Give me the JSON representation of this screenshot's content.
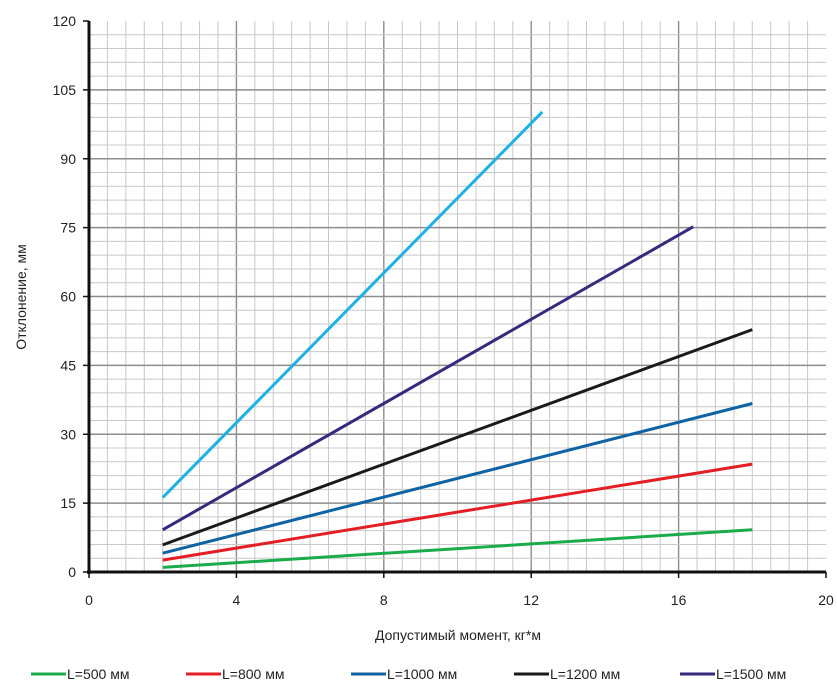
{
  "chart_data": {
    "type": "line",
    "title": "",
    "xlabel": "Допустимый момент, кг*м",
    "ylabel": "Отклонение, мм",
    "xlim": [
      0,
      20
    ],
    "ylim": [
      0,
      120
    ],
    "x_ticks": [
      "0",
      "4",
      "8",
      "12",
      "16",
      "20"
    ],
    "y_ticks": [
      "0",
      "15",
      "30",
      "45",
      "60",
      "75",
      "90",
      "105",
      "120"
    ],
    "grid": true,
    "legend_position": "bottom",
    "series": [
      {
        "name": "L=500 мм",
        "color": "#1aab4b",
        "points": [
          [
            2,
            1.0
          ],
          [
            18,
            9.2
          ]
        ]
      },
      {
        "name": "L=800 мм",
        "color": "#e31e24",
        "points": [
          [
            2,
            2.6
          ],
          [
            18,
            23.5
          ]
        ]
      },
      {
        "name": "L=1000 мм",
        "color": "#0f63a3",
        "points": [
          [
            2,
            4.1
          ],
          [
            18,
            36.7
          ]
        ]
      },
      {
        "name": "L=1200 мм",
        "color": "#1a1a1a",
        "points": [
          [
            2,
            5.9
          ],
          [
            18,
            52.8
          ]
        ]
      },
      {
        "name": "L=1500 мм",
        "color": "#352a7e",
        "points": [
          [
            2,
            9.2
          ],
          [
            16.4,
            75.2
          ]
        ]
      },
      {
        "name": "",
        "color": "#1fb1e3",
        "points": [
          [
            2,
            16.2
          ],
          [
            12.3,
            100.2
          ]
        ]
      }
    ]
  }
}
